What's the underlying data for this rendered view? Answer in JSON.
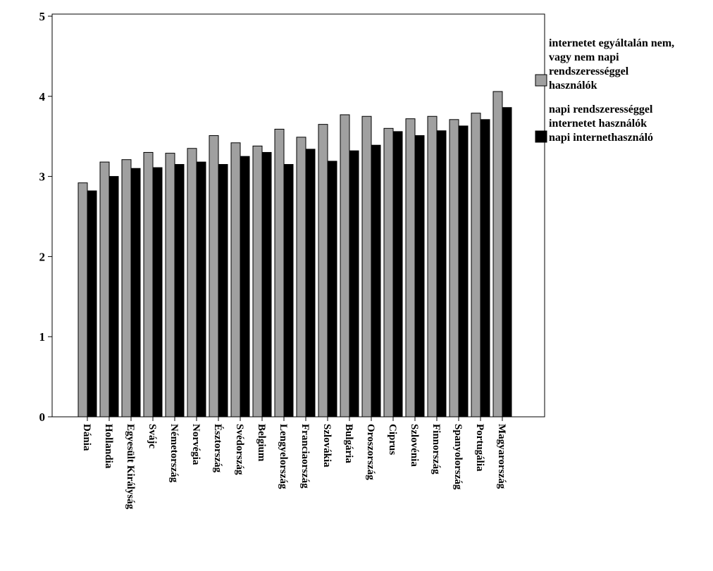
{
  "chart_data": {
    "type": "bar",
    "title": "",
    "xlabel": "",
    "ylabel": "",
    "ylim": [
      0,
      5
    ],
    "yticks": [
      0,
      1,
      2,
      3,
      4,
      5
    ],
    "grid": false,
    "legend_position": "right",
    "categories": [
      "Dánia",
      "Hollandia",
      "Egyesült Királyság",
      "Svájc",
      "Németország",
      "Norvégia",
      "Észtország",
      "Svédország",
      "Belgium",
      "Lengyelország",
      "Franciaország",
      "Szlovákia",
      "Bulgária",
      "Oroszország",
      "Ciprus",
      "Szlovénia",
      "Finnország",
      "Spanyolország",
      "Portugália",
      "Magyarország"
    ],
    "series": [
      {
        "name": "internetet egyáltalán nem, vagy nem napi rendszerességgel használók",
        "legend_lines": [
          "internetet egyáltalán nem,",
          "vagy nem napi",
          "rendszerességgel",
          "használók"
        ],
        "color": "#a0a0a0",
        "values": [
          2.92,
          3.18,
          3.21,
          3.3,
          3.29,
          3.35,
          3.51,
          3.42,
          3.38,
          3.59,
          3.49,
          3.65,
          3.77,
          3.75,
          3.6,
          3.72,
          3.75,
          3.71,
          3.79,
          4.06
        ]
      },
      {
        "name": "napi rendszerességgel internetet használók napi internethasználó",
        "legend_lines": [
          "napi rendszerességgel",
          "internetet használók",
          "napi internethasználó"
        ],
        "color": "#000000",
        "values": [
          2.82,
          3.0,
          3.1,
          3.11,
          3.15,
          3.18,
          3.15,
          3.25,
          3.3,
          3.15,
          3.34,
          3.19,
          3.32,
          3.39,
          3.56,
          3.51,
          3.57,
          3.63,
          3.71,
          3.86
        ]
      }
    ]
  }
}
